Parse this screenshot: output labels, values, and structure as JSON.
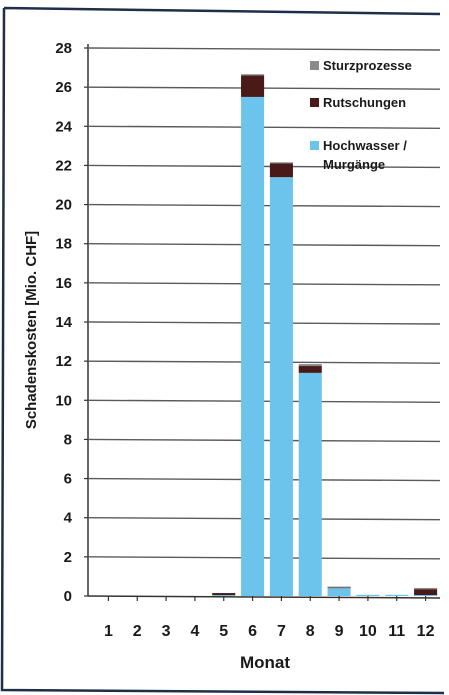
{
  "chart_data": {
    "type": "bar",
    "stacked": true,
    "categories": [
      "1",
      "2",
      "3",
      "4",
      "5",
      "6",
      "7",
      "8",
      "9",
      "10",
      "11",
      "12"
    ],
    "series": [
      {
        "name": "Hochwasser / Murgänge",
        "color": "#6cc4ec",
        "values": [
          0,
          0,
          0,
          0,
          0.05,
          25.5,
          21.4,
          11.4,
          0.4,
          0.02,
          0.02,
          0.05
        ]
      },
      {
        "name": "Rutschungen",
        "color": "#4a1a18",
        "values": [
          0,
          0,
          0,
          0,
          0.1,
          1.1,
          0.7,
          0.35,
          0.02,
          0,
          0,
          0.3
        ]
      },
      {
        "name": "Sturzprozesse",
        "color": "#8a8a8a",
        "values": [
          0,
          0,
          0,
          0,
          0,
          0.05,
          0.05,
          0.1,
          0.05,
          0,
          0,
          0.02
        ]
      }
    ],
    "legend": [
      {
        "label": "Sturzprozesse",
        "color": "#8a8a8a"
      },
      {
        "label": "Rutschungen",
        "color": "#4a1a18"
      },
      {
        "label": "Hochwasser /",
        "label2": "Murgänge",
        "color": "#6cc4ec"
      }
    ],
    "yticks": [
      0,
      2,
      4,
      6,
      8,
      10,
      12,
      14,
      16,
      18,
      20,
      22,
      24,
      26,
      28
    ],
    "ylim": [
      0,
      28
    ],
    "ylabel": "Schadenskosten [Mio. CHF]",
    "xlabel": "Monat",
    "grid": true,
    "legend_position": "top-right"
  }
}
